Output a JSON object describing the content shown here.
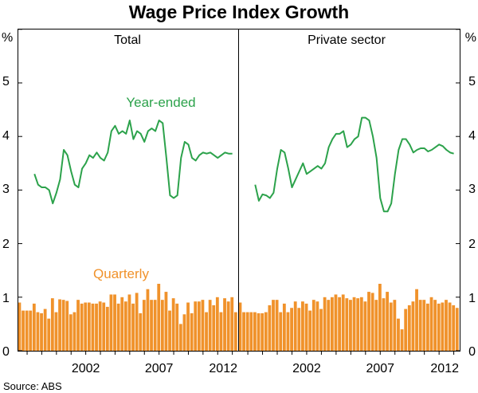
{
  "chart_data": {
    "type": "bar+line",
    "title": "Wage Price Index Growth",
    "source": "Source: ABS",
    "y_unit": "%",
    "ylim": [
      0,
      6
    ],
    "y_ticks": [
      "0",
      "1",
      "2",
      "3",
      "4",
      "5"
    ],
    "x_tick_labels": [
      "2002",
      "2007",
      "2012"
    ],
    "x_tick_years": [
      2002,
      2007,
      2012
    ],
    "colors": {
      "line": "#2ca24b",
      "bar": "#f0922b",
      "bar_edge": "#ffffff",
      "axis": "#000000"
    },
    "annotations": {
      "line": "Year-ended",
      "bars": "Quarterly"
    },
    "panels": [
      {
        "name": "Total",
        "year_ended": {
          "x": [
            1998.5,
            1998.75,
            1999,
            1999.25,
            1999.5,
            1999.75,
            2000,
            2000.25,
            2000.5,
            2000.75,
            2001,
            2001.25,
            2001.5,
            2001.75,
            2002,
            2002.25,
            2002.5,
            2002.75,
            2003,
            2003.25,
            2003.5,
            2003.75,
            2004,
            2004.25,
            2004.5,
            2004.75,
            2005,
            2005.25,
            2005.5,
            2005.75,
            2006,
            2006.25,
            2006.5,
            2006.75,
            2007,
            2007.25,
            2007.5,
            2007.75,
            2008,
            2008.25,
            2008.5,
            2008.75,
            2009,
            2009.25,
            2009.5,
            2009.75,
            2010,
            2010.25,
            2010.5,
            2010.75,
            2011,
            2011.25,
            2011.5,
            2011.75,
            2012
          ],
          "y": [
            3.3,
            3.1,
            3.05,
            3.05,
            3.0,
            2.75,
            2.95,
            3.2,
            3.75,
            3.65,
            3.35,
            3.1,
            3.05,
            3.4,
            3.5,
            3.65,
            3.6,
            3.7,
            3.6,
            3.55,
            3.7,
            4.1,
            4.2,
            4.05,
            4.1,
            4.05,
            4.3,
            3.95,
            4.1,
            4.05,
            3.9,
            4.1,
            4.15,
            4.1,
            4.3,
            4.25,
            3.6,
            2.9,
            2.85,
            2.9,
            3.6,
            3.9,
            3.85,
            3.6,
            3.55,
            3.65,
            3.7,
            3.68,
            3.7,
            3.65,
            3.6,
            3.65,
            3.7,
            3.68,
            3.68
          ]
        },
        "quarterly": {
          "x": [
            1997.5,
            1997.75,
            1998,
            1998.25,
            1998.5,
            1998.75,
            1999,
            1999.25,
            1999.5,
            1999.75,
            2000,
            2000.25,
            2000.5,
            2000.75,
            2001,
            2001.25,
            2001.5,
            2001.75,
            2002,
            2002.25,
            2002.5,
            2002.75,
            2003,
            2003.25,
            2003.5,
            2003.75,
            2004,
            2004.25,
            2004.5,
            2004.75,
            2005,
            2005.25,
            2005.5,
            2005.75,
            2006,
            2006.25,
            2006.5,
            2006.75,
            2007,
            2007.25,
            2007.5,
            2007.75,
            2008,
            2008.25,
            2008.5,
            2008.75,
            2009,
            2009.25,
            2009.5,
            2009.75,
            2010,
            2010.25,
            2010.5,
            2010.75,
            2011,
            2011.25,
            2011.5,
            2011.75,
            2012,
            2012.25
          ],
          "y": [
            0.9,
            0.75,
            0.75,
            0.75,
            0.88,
            0.72,
            0.7,
            0.78,
            0.6,
            0.98,
            0.72,
            0.96,
            0.95,
            0.93,
            0.68,
            0.72,
            0.95,
            0.88,
            0.9,
            0.9,
            0.88,
            0.88,
            0.92,
            0.9,
            0.82,
            1.05,
            1.05,
            0.88,
            1.0,
            0.92,
            1.05,
            0.88,
            1.08,
            0.7,
            0.95,
            1.15,
            0.95,
            0.95,
            1.25,
            0.95,
            1.1,
            0.75,
            0.98,
            0.88,
            0.5,
            0.68,
            0.9,
            0.7,
            0.92,
            0.92,
            0.95,
            0.72,
            0.95,
            0.85,
            1.0,
            0.72,
            0.98,
            0.92,
            1.0,
            0.72
          ]
        }
      },
      {
        "name": "Private sector",
        "year_ended": {
          "x": [
            1998.5,
            1998.75,
            1999,
            1999.25,
            1999.5,
            1999.75,
            2000,
            2000.25,
            2000.5,
            2000.75,
            2001,
            2001.25,
            2001.5,
            2001.75,
            2002,
            2002.25,
            2002.5,
            2002.75,
            2003,
            2003.25,
            2003.5,
            2003.75,
            2004,
            2004.25,
            2004.5,
            2004.75,
            2005,
            2005.25,
            2005.5,
            2005.75,
            2006,
            2006.25,
            2006.5,
            2006.75,
            2007,
            2007.25,
            2007.5,
            2007.75,
            2008,
            2008.25,
            2008.5,
            2008.75,
            2009,
            2009.25,
            2009.5,
            2009.75,
            2010,
            2010.25,
            2010.5,
            2010.75,
            2011,
            2011.25,
            2011.5,
            2011.75,
            2012
          ],
          "y": [
            3.1,
            2.8,
            2.92,
            2.9,
            2.85,
            2.95,
            3.4,
            3.75,
            3.7,
            3.4,
            3.05,
            3.2,
            3.35,
            3.5,
            3.3,
            3.35,
            3.4,
            3.45,
            3.4,
            3.5,
            3.8,
            3.95,
            4.05,
            4.05,
            4.1,
            3.8,
            3.85,
            3.95,
            4.0,
            4.35,
            4.35,
            4.3,
            4.0,
            3.6,
            2.85,
            2.6,
            2.6,
            2.75,
            3.3,
            3.75,
            3.95,
            3.95,
            3.85,
            3.7,
            3.75,
            3.78,
            3.78,
            3.72,
            3.75,
            3.8,
            3.85,
            3.82,
            3.75,
            3.7,
            3.68
          ]
        },
        "quarterly": {
          "x": [
            1997.5,
            1997.75,
            1998,
            1998.25,
            1998.5,
            1998.75,
            1999,
            1999.25,
            1999.5,
            1999.75,
            2000,
            2000.25,
            2000.5,
            2000.75,
            2001,
            2001.25,
            2001.5,
            2001.75,
            2002,
            2002.25,
            2002.5,
            2002.75,
            2003,
            2003.25,
            2003.5,
            2003.75,
            2004,
            2004.25,
            2004.5,
            2004.75,
            2005,
            2005.25,
            2005.5,
            2005.75,
            2006,
            2006.25,
            2006.5,
            2006.75,
            2007,
            2007.25,
            2007.5,
            2007.75,
            2008,
            2008.25,
            2008.5,
            2008.75,
            2009,
            2009.25,
            2009.5,
            2009.75,
            2010,
            2010.25,
            2010.5,
            2010.75,
            2011,
            2011.25,
            2011.5,
            2011.75,
            2012,
            2012.25
          ],
          "y": [
            0.9,
            0.72,
            0.72,
            0.72,
            0.72,
            0.7,
            0.7,
            0.72,
            0.85,
            0.95,
            0.95,
            0.72,
            0.88,
            0.72,
            0.8,
            0.92,
            0.8,
            0.92,
            0.88,
            0.75,
            0.95,
            0.92,
            0.78,
            1.0,
            0.95,
            1.0,
            1.05,
            1.0,
            1.05,
            0.98,
            0.95,
            1.0,
            0.98,
            1.0,
            0.92,
            1.1,
            1.08,
            0.95,
            1.25,
            0.98,
            1.1,
            0.9,
            0.95,
            0.6,
            0.4,
            0.78,
            0.85,
            0.92,
            1.15,
            0.95,
            0.95,
            0.88,
            1.0,
            0.95,
            0.88,
            0.9,
            0.95,
            0.9,
            0.85,
            0.8
          ]
        }
      }
    ]
  }
}
